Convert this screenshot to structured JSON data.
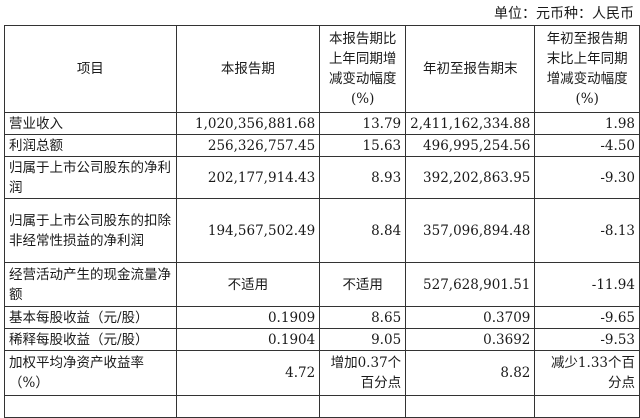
{
  "unit": "单位：元币种：人民币",
  "headers": [
    "项目",
    "本报告期",
    "本报告期比上年同期增减变动幅度(%)",
    "年初至报告期末",
    "年初至报告期末比上年同期增减变动幅度(%)"
  ],
  "header_lines": {
    "c2": [
      "本报告期比",
      "上年同期增",
      "减变动幅度",
      "(%)"
    ],
    "c4": [
      "年初至报告期",
      "末比上年同期",
      "增减变动幅度",
      "(%)"
    ]
  },
  "rows": [
    {
      "item": "营业收入",
      "current": "1,020,356,881.68",
      "current_change": "13.79",
      "ytd": "2,411,162,334.88",
      "ytd_change": "1.98"
    },
    {
      "item": "利润总额",
      "current": "256,326,757.45",
      "current_change": "15.63",
      "ytd": "496,995,254.56",
      "ytd_change": "-4.50"
    },
    {
      "item": "归属于上市公司股东的净利润",
      "current": "202,177,914.43",
      "current_change": "8.93",
      "ytd": "392,202,863.95",
      "ytd_change": "-9.30"
    },
    {
      "item": "归属于上市公司股东的扣除非经常性损益的净利润",
      "current": "194,567,502.49",
      "current_change": "8.84",
      "ytd": "357,096,894.48",
      "ytd_change": "-8.13"
    },
    {
      "item": "经营活动产生的现金流量净额",
      "current": "不适用",
      "current_change": "不适用",
      "ytd": "527,628,901.51",
      "ytd_change": "-11.94"
    },
    {
      "item": "基本每股收益（元/股）",
      "current": "0.1909",
      "current_change": "8.65",
      "ytd": "0.3709",
      "ytd_change": "-9.65"
    },
    {
      "item": "稀释每股收益（元/股）",
      "current": "0.1904",
      "current_change": "9.05",
      "ytd": "0.3692",
      "ytd_change": "-9.53"
    },
    {
      "item": "加权平均净资产收益率（%）",
      "current": "4.72",
      "current_change": "增加0.37个百分点",
      "ytd": "8.82",
      "ytd_change": "减少1.33个百分点"
    }
  ]
}
